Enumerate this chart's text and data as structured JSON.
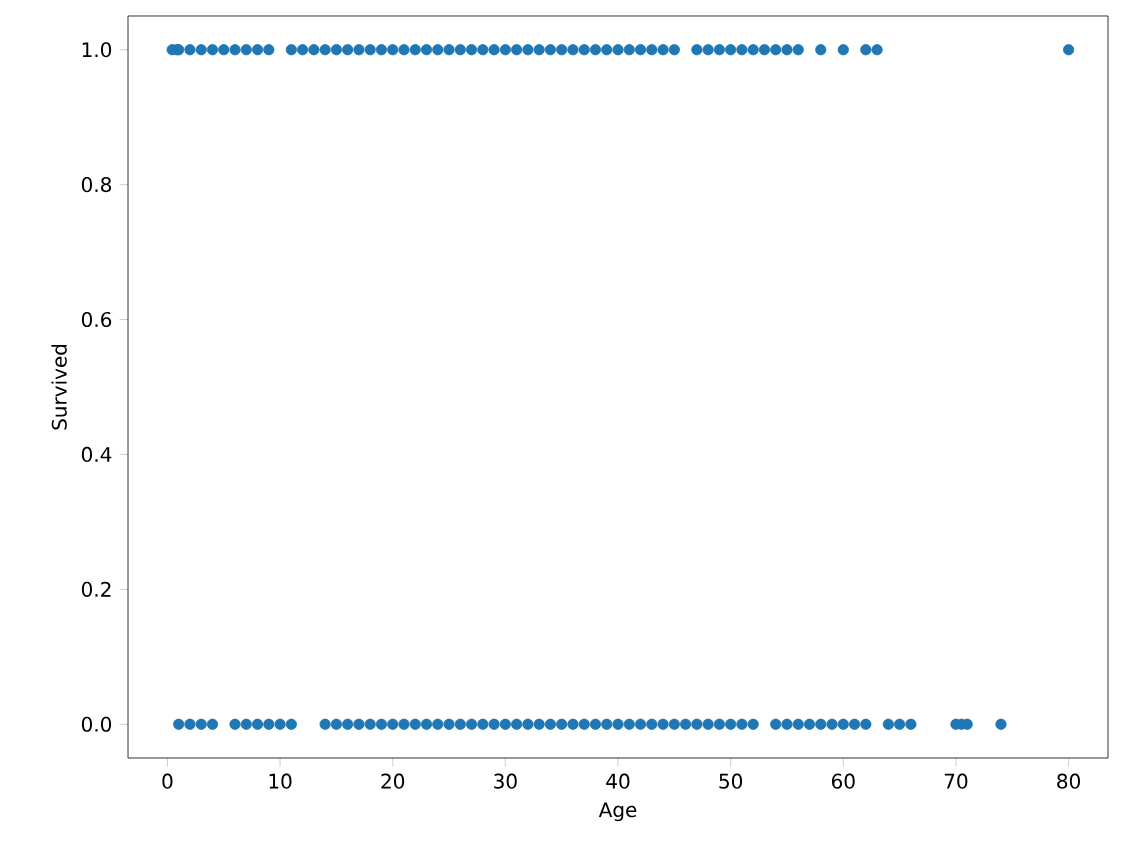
{
  "chart_data": {
    "type": "scatter",
    "xlabel": "Age",
    "ylabel": "Survived",
    "grid": false,
    "xlim": [
      -3.5,
      83.5
    ],
    "ylim": [
      -0.05,
      1.05
    ],
    "xticks": [
      0,
      10,
      20,
      30,
      40,
      50,
      60,
      70,
      80
    ],
    "yticks": [
      {
        "value": 0,
        "label": "0.0"
      },
      {
        "value": 0.2,
        "label": "0.2"
      },
      {
        "value": 0.4,
        "label": "0.4"
      },
      {
        "value": 0.6,
        "label": "0.6"
      },
      {
        "value": 0.8,
        "label": "0.8"
      },
      {
        "value": 1,
        "label": "1.0"
      }
    ],
    "series": [
      {
        "color": "#1f77b4",
        "x": [
          0.42,
          0.83,
          1,
          2,
          3,
          4,
          5,
          6,
          7,
          8,
          9,
          11,
          12,
          13,
          14,
          15,
          16,
          17,
          18,
          19,
          20,
          21,
          22,
          23,
          24,
          25,
          26,
          27,
          28,
          29,
          30,
          31,
          32,
          33,
          34,
          35,
          36,
          37,
          38,
          39,
          40,
          41,
          42,
          43,
          44,
          45,
          47,
          48,
          49,
          50,
          51,
          52,
          53,
          54,
          55,
          56,
          58,
          60,
          62,
          63,
          80,
          1,
          2,
          3,
          4,
          6,
          7,
          8,
          9,
          10,
          11,
          14,
          15,
          16,
          17,
          18,
          19,
          20,
          21,
          22,
          23,
          24,
          25,
          26,
          27,
          28,
          29,
          30,
          31,
          32,
          33,
          34,
          35,
          36,
          37,
          38,
          39,
          40,
          41,
          42,
          43,
          44,
          45,
          46,
          47,
          48,
          49,
          50,
          51,
          52,
          54,
          55,
          56,
          57,
          58,
          59,
          60,
          61,
          62,
          64,
          65,
          66,
          70,
          70.5,
          71,
          74
        ],
        "values": [
          1,
          1,
          1,
          1,
          1,
          1,
          1,
          1,
          1,
          1,
          1,
          1,
          1,
          1,
          1,
          1,
          1,
          1,
          1,
          1,
          1,
          1,
          1,
          1,
          1,
          1,
          1,
          1,
          1,
          1,
          1,
          1,
          1,
          1,
          1,
          1,
          1,
          1,
          1,
          1,
          1,
          1,
          1,
          1,
          1,
          1,
          1,
          1,
          1,
          1,
          1,
          1,
          1,
          1,
          1,
          1,
          1,
          1,
          1,
          1,
          1,
          0,
          0,
          0,
          0,
          0,
          0,
          0,
          0,
          0,
          0,
          0,
          0,
          0,
          0,
          0,
          0,
          0,
          0,
          0,
          0,
          0,
          0,
          0,
          0,
          0,
          0,
          0,
          0,
          0,
          0,
          0,
          0,
          0,
          0,
          0,
          0,
          0,
          0,
          0,
          0,
          0,
          0,
          0,
          0,
          0,
          0,
          0,
          0,
          0,
          0,
          0,
          0,
          0,
          0,
          0,
          0,
          0,
          0,
          0,
          0,
          0,
          0,
          0,
          0,
          0
        ]
      }
    ]
  }
}
